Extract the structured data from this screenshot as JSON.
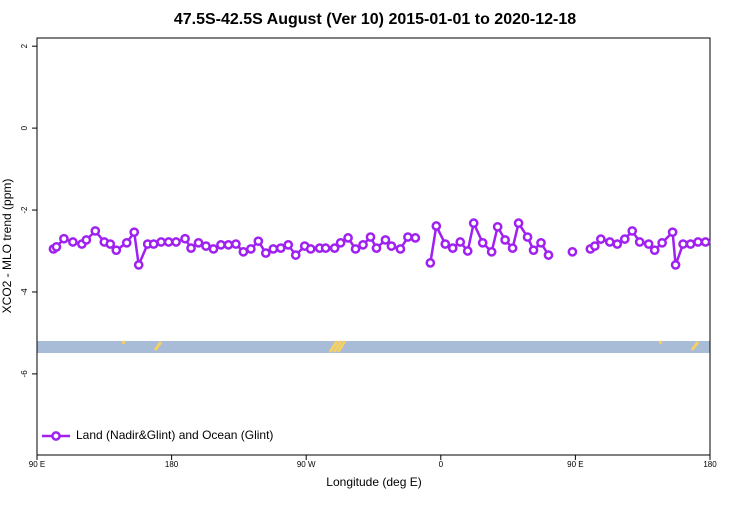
{
  "chart_data": {
    "type": "line",
    "title": "47.5S-42.5S August (Ver 10)   2015-01-01 to 2020-12-18",
    "x_label": "Longitude (deg E)",
    "y_label": "XCO2 - MLO trend (ppm)",
    "xlim": [
      90,
      540
    ],
    "ylim": [
      -7.98,
      2.2
    ],
    "xticks": [
      {
        "value": 90,
        "label": "90 E"
      },
      180,
      {
        "value": 270,
        "label": "90 W"
      },
      {
        "value": 360,
        "label": "0"
      },
      {
        "value": 450,
        "label": "90 E"
      },
      {
        "value": 540,
        "label": "180"
      }
    ],
    "yticks": [
      2,
      0,
      -2,
      -4,
      -6
    ],
    "grid": false,
    "legend_position": "bottom-left",
    "x": [
      101,
      103,
      108,
      114,
      120,
      123,
      129,
      135,
      139,
      143,
      150,
      155,
      158,
      164,
      168,
      173,
      178,
      183,
      189,
      193,
      198,
      203,
      208,
      213,
      218,
      223,
      228,
      233,
      238,
      243,
      248,
      253,
      258,
      263,
      269,
      273,
      279,
      283,
      289,
      293,
      298,
      303,
      308,
      313,
      317,
      323,
      327,
      333,
      338,
      343,
      348,
      353,
      357,
      363,
      368,
      373,
      378,
      382,
      388,
      394,
      398,
      403,
      408,
      412,
      418,
      422,
      427,
      432,
      440,
      448,
      454,
      460,
      463,
      467,
      473,
      478,
      483,
      488,
      493,
      499,
      503,
      508,
      515,
      517,
      522,
      527,
      532,
      537
    ],
    "series": [
      {
        "name": "Land (Nadir&Glint) and Ocean (Glint)",
        "color": "#a020f0",
        "values": [
          -2.95,
          -2.9,
          -2.7,
          -2.78,
          -2.83,
          -2.73,
          -2.51,
          -2.78,
          -2.83,
          -2.98,
          -2.8,
          -2.54,
          -3.34,
          -2.83,
          -2.83,
          -2.78,
          -2.78,
          -2.78,
          -2.7,
          -2.93,
          -2.8,
          -2.88,
          -2.95,
          -2.85,
          -2.85,
          -2.83,
          -3.02,
          -2.95,
          -2.76,
          -3.05,
          -2.95,
          -2.93,
          -2.85,
          -3.1,
          -2.88,
          -2.95,
          -2.93,
          -2.93,
          -2.93,
          -2.8,
          -2.68,
          -2.95,
          -2.85,
          -2.66,
          -2.93,
          -2.73,
          -2.88,
          -2.95,
          -2.66,
          -2.68,
          null,
          -3.29,
          -2.39,
          -2.83,
          -2.93,
          -2.78,
          -3.0,
          -2.32,
          -2.8,
          -3.02,
          -2.41,
          -2.73,
          -2.93,
          -2.32,
          -2.66,
          -2.98,
          -2.8,
          -3.1,
          null,
          -3.02,
          null,
          -2.95,
          -2.88,
          -2.71,
          -2.78,
          -2.83,
          -2.71,
          -2.51,
          -2.78,
          -2.83,
          -2.98,
          -2.8,
          -2.54,
          -3.34,
          -2.83,
          -2.83,
          -2.78,
          -2.78
        ]
      }
    ]
  }
}
